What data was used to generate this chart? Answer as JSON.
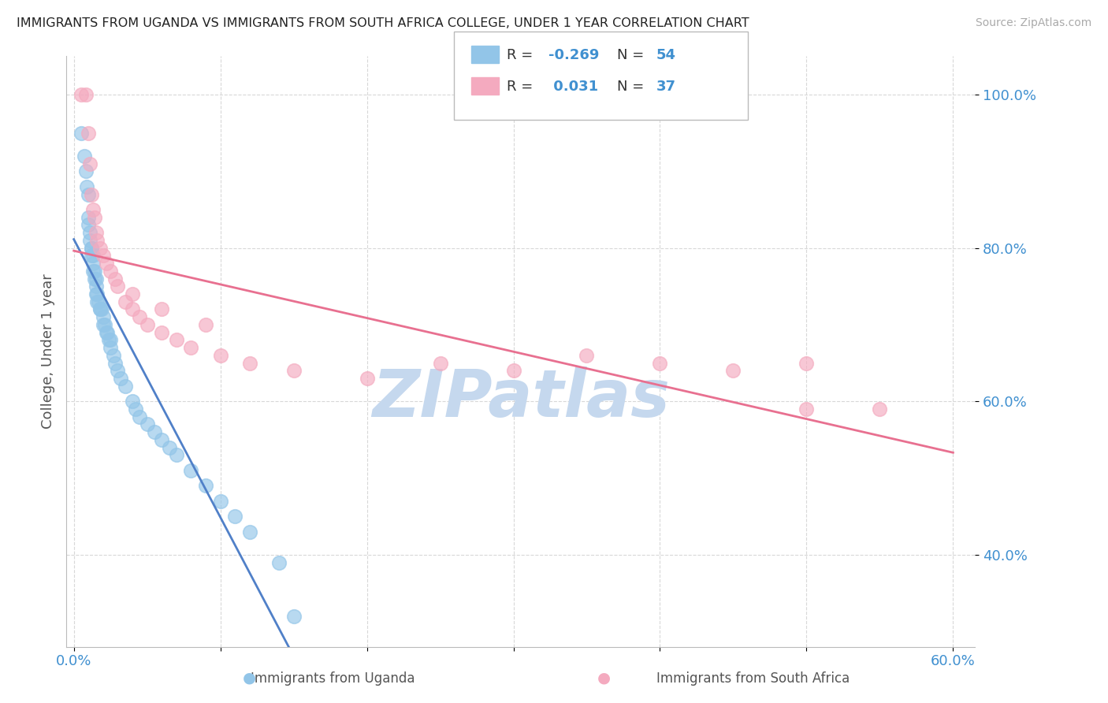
{
  "title": "IMMIGRANTS FROM UGANDA VS IMMIGRANTS FROM SOUTH AFRICA COLLEGE, UNDER 1 YEAR CORRELATION CHART",
  "source": "Source: ZipAtlas.com",
  "xlabel_uganda": "Immigrants from Uganda",
  "xlabel_sa": "Immigrants from South Africa",
  "ylabel": "College, Under 1 year",
  "xlim": [
    -0.005,
    0.615
  ],
  "ylim": [
    0.28,
    1.05
  ],
  "xticks": [
    0.0,
    0.1,
    0.2,
    0.3,
    0.4,
    0.5,
    0.6
  ],
  "xticklabels": [
    "0.0%",
    "",
    "",
    "",
    "",
    "",
    "60.0%"
  ],
  "yticks": [
    0.4,
    0.6,
    0.8,
    1.0
  ],
  "yticklabels": [
    "40.0%",
    "60.0%",
    "80.0%",
    "100.0%"
  ],
  "uganda_R": -0.269,
  "uganda_N": 54,
  "sa_R": 0.031,
  "sa_N": 37,
  "uganda_color": "#92C5E8",
  "sa_color": "#F4AABF",
  "uganda_line_color": "#5080C8",
  "sa_line_color": "#E87090",
  "watermark_color": "#C5D8EE",
  "background_color": "#FFFFFF",
  "grid_color": "#D8D8D8",
  "uganda_x": [
    0.005,
    0.007,
    0.008,
    0.009,
    0.01,
    0.01,
    0.01,
    0.011,
    0.011,
    0.012,
    0.012,
    0.012,
    0.013,
    0.013,
    0.013,
    0.014,
    0.014,
    0.015,
    0.015,
    0.015,
    0.016,
    0.016,
    0.017,
    0.018,
    0.018,
    0.019,
    0.02,
    0.02,
    0.021,
    0.022,
    0.023,
    0.024,
    0.025,
    0.025,
    0.027,
    0.028,
    0.03,
    0.032,
    0.035,
    0.04,
    0.042,
    0.045,
    0.05,
    0.055,
    0.06,
    0.065,
    0.07,
    0.08,
    0.09,
    0.1,
    0.11,
    0.12,
    0.14,
    0.15
  ],
  "uganda_y": [
    0.95,
    0.92,
    0.9,
    0.88,
    0.87,
    0.84,
    0.83,
    0.82,
    0.81,
    0.8,
    0.8,
    0.79,
    0.79,
    0.78,
    0.77,
    0.77,
    0.76,
    0.76,
    0.75,
    0.74,
    0.74,
    0.73,
    0.73,
    0.72,
    0.72,
    0.72,
    0.71,
    0.7,
    0.7,
    0.69,
    0.69,
    0.68,
    0.68,
    0.67,
    0.66,
    0.65,
    0.64,
    0.63,
    0.62,
    0.6,
    0.59,
    0.58,
    0.57,
    0.56,
    0.55,
    0.54,
    0.53,
    0.51,
    0.49,
    0.47,
    0.45,
    0.43,
    0.39,
    0.32
  ],
  "sa_x": [
    0.005,
    0.008,
    0.01,
    0.011,
    0.012,
    0.013,
    0.014,
    0.015,
    0.016,
    0.018,
    0.02,
    0.022,
    0.025,
    0.028,
    0.03,
    0.035,
    0.04,
    0.045,
    0.05,
    0.06,
    0.07,
    0.08,
    0.1,
    0.12,
    0.15,
    0.2,
    0.25,
    0.3,
    0.35,
    0.4,
    0.45,
    0.5,
    0.55,
    0.04,
    0.06,
    0.09,
    0.5
  ],
  "sa_y": [
    1.0,
    1.0,
    0.95,
    0.91,
    0.87,
    0.85,
    0.84,
    0.82,
    0.81,
    0.8,
    0.79,
    0.78,
    0.77,
    0.76,
    0.75,
    0.73,
    0.72,
    0.71,
    0.7,
    0.69,
    0.68,
    0.67,
    0.66,
    0.65,
    0.64,
    0.63,
    0.65,
    0.64,
    0.66,
    0.65,
    0.64,
    0.65,
    0.59,
    0.74,
    0.72,
    0.7,
    0.59
  ]
}
